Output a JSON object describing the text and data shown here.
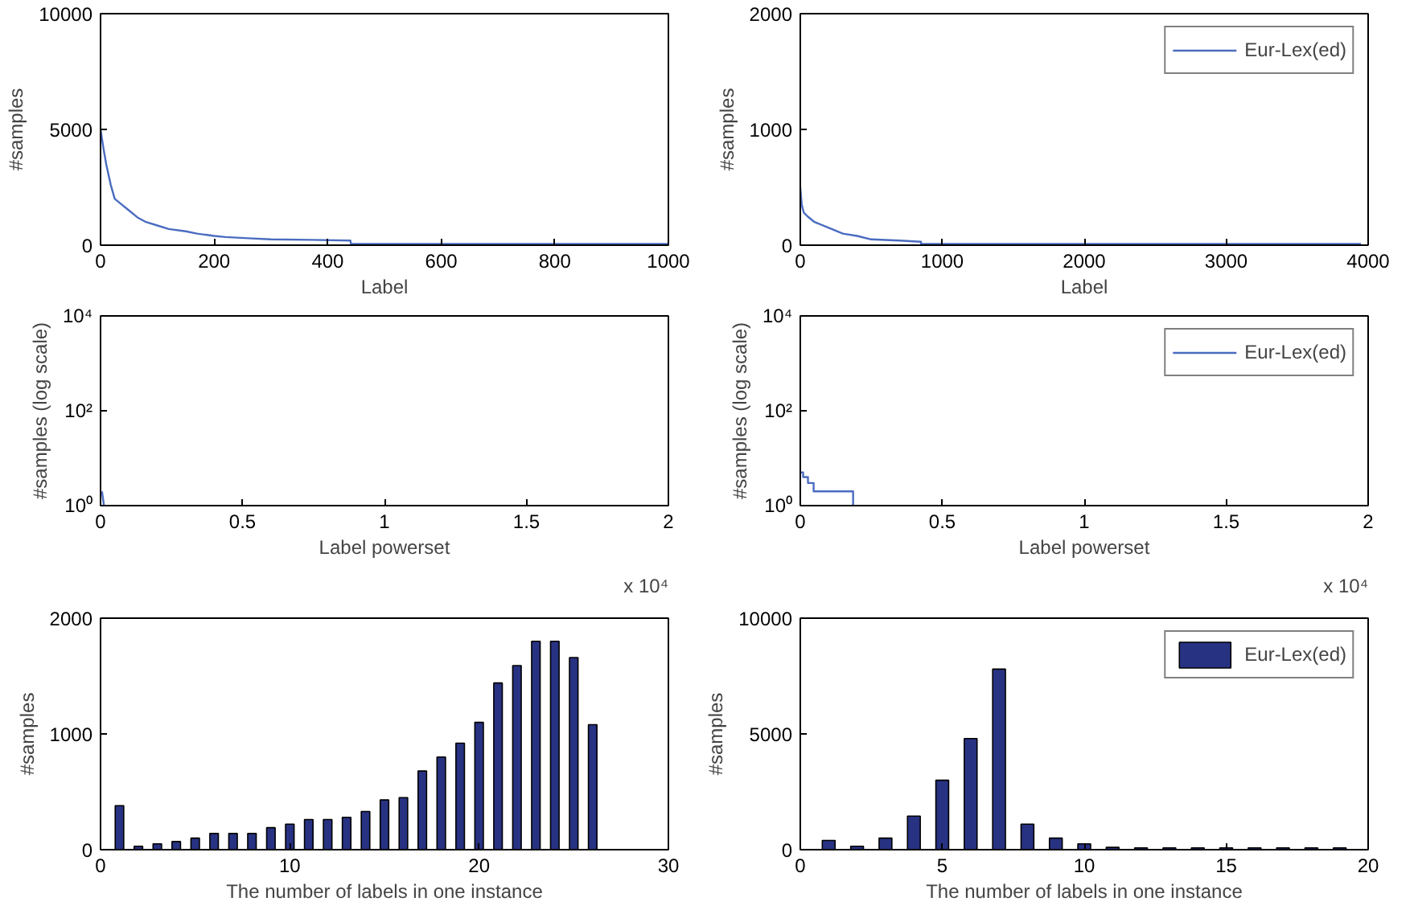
{
  "chart_data": [
    {
      "type": "line",
      "xlabel": "Label",
      "ylabel": "#samples",
      "xlim": [
        0,
        1000
      ],
      "ylim": [
        0,
        10000
      ],
      "xticks": [
        0,
        200,
        400,
        600,
        800,
        1000
      ],
      "yticks": [
        0,
        5000,
        10000
      ],
      "grid": false,
      "legend": false,
      "series": [
        {
          "color": "#4a6cc0",
          "x": [
            0,
            5,
            10,
            18,
            25,
            35,
            50,
            65,
            80,
            100,
            120,
            150,
            170,
            200,
            220,
            260,
            300,
            370,
            440,
            441,
            600,
            800,
            1000
          ],
          "values": [
            5000,
            4200,
            3500,
            2600,
            2000,
            1800,
            1500,
            1200,
            1000,
            850,
            700,
            600,
            500,
            400,
            350,
            300,
            250,
            230,
            200,
            50,
            50,
            50,
            50
          ]
        }
      ]
    },
    {
      "type": "line",
      "xlabel": "Label",
      "ylabel": "#samples",
      "xlim": [
        0,
        4000
      ],
      "ylim": [
        0,
        2000
      ],
      "xticks": [
        0,
        1000,
        2000,
        3000,
        4000
      ],
      "yticks": [
        0,
        1000,
        2000
      ],
      "grid": false,
      "legend": "top right",
      "series": [
        {
          "name": "Eur-Lex(ed)",
          "color": "#4a6cc0",
          "x": [
            0,
            10,
            25,
            50,
            100,
            200,
            300,
            400,
            500,
            700,
            850,
            851,
            2000,
            3000,
            3950
          ],
          "values": [
            500,
            350,
            280,
            250,
            200,
            150,
            100,
            80,
            50,
            40,
            30,
            10,
            10,
            10,
            10
          ]
        }
      ]
    },
    {
      "type": "line",
      "xlabel": "Label powerset",
      "ylabel": "#samples (log scale)",
      "log": "y",
      "xlim": [
        0,
        2
      ],
      "ylim": [
        1,
        10000
      ],
      "xticks": [
        0,
        0.5,
        1,
        1.5,
        2
      ],
      "yticks": [
        {
          "value": 1,
          "label": "10⁰"
        },
        {
          "value": 100,
          "label": "10²"
        },
        {
          "value": 10000,
          "label": "10⁴"
        }
      ],
      "grid": false,
      "legend": false,
      "annotations": [
        "x 10⁴"
      ],
      "series": [
        {
          "color": "#4a6cc0",
          "x": [
            0.005,
            0.012
          ],
          "values": [
            2,
            1
          ]
        }
      ]
    },
    {
      "type": "line",
      "xlabel": "Label powerset",
      "ylabel": "#samples (log scale)",
      "log": "y",
      "xlim": [
        0,
        2
      ],
      "ylim": [
        1,
        10000
      ],
      "xticks": [
        0,
        0.5,
        1,
        1.5,
        2
      ],
      "yticks": [
        {
          "value": 1,
          "label": "10⁰"
        },
        {
          "value": 100,
          "label": "10²"
        },
        {
          "value": 10000,
          "label": "10⁴"
        }
      ],
      "grid": false,
      "legend": "top right",
      "annotations": [
        "x 10⁴"
      ],
      "series": [
        {
          "name": "Eur-Lex(ed)",
          "color": "#4a6cc0",
          "x": [
            0,
            0.01,
            0.01,
            0.027,
            0.027,
            0.047,
            0.047,
            0.186,
            0.186
          ],
          "values": [
            5,
            5,
            4,
            4,
            3,
            3,
            2,
            2,
            1
          ]
        }
      ]
    },
    {
      "type": "bar",
      "xlabel": "The number of labels in one instance",
      "ylabel": "#samples",
      "xlim": [
        0,
        30
      ],
      "ylim": [
        0,
        2000
      ],
      "xticks": [
        0,
        10,
        20,
        30
      ],
      "yticks": [
        0,
        1000,
        2000
      ],
      "grid": false,
      "legend": false,
      "x": [
        1,
        2,
        3,
        4,
        5,
        6,
        7,
        8,
        9,
        10,
        11,
        12,
        13,
        14,
        15,
        16,
        17,
        18,
        19,
        20,
        21,
        22,
        23,
        24,
        25,
        26
      ],
      "series": [
        {
          "color": "#283282",
          "values": [
            380,
            30,
            50,
            70,
            100,
            140,
            140,
            140,
            190,
            220,
            260,
            260,
            280,
            330,
            430,
            450,
            680,
            800,
            920,
            1100,
            1440,
            1590,
            1800,
            1800,
            1660,
            1080
          ]
        }
      ]
    },
    {
      "type": "bar",
      "xlabel": "The number of labels in one instance",
      "ylabel": "#samples",
      "xlim": [
        0,
        20
      ],
      "ylim": [
        0,
        10000
      ],
      "xticks": [
        0,
        5,
        10,
        15,
        20
      ],
      "yticks": [
        0,
        5000,
        10000
      ],
      "grid": false,
      "legend": "top right",
      "x": [
        1,
        2,
        3,
        4,
        5,
        6,
        7,
        8,
        9,
        10,
        11,
        12,
        13,
        14,
        15,
        16,
        17,
        18,
        19
      ],
      "series": [
        {
          "name": "Eur-Lex(ed)",
          "color": "#283282",
          "values": [
            400,
            150,
            500,
            1450,
            3000,
            4800,
            7800,
            1100,
            500,
            250,
            100,
            80,
            80,
            80,
            80,
            80,
            80,
            80,
            80
          ]
        }
      ]
    }
  ]
}
